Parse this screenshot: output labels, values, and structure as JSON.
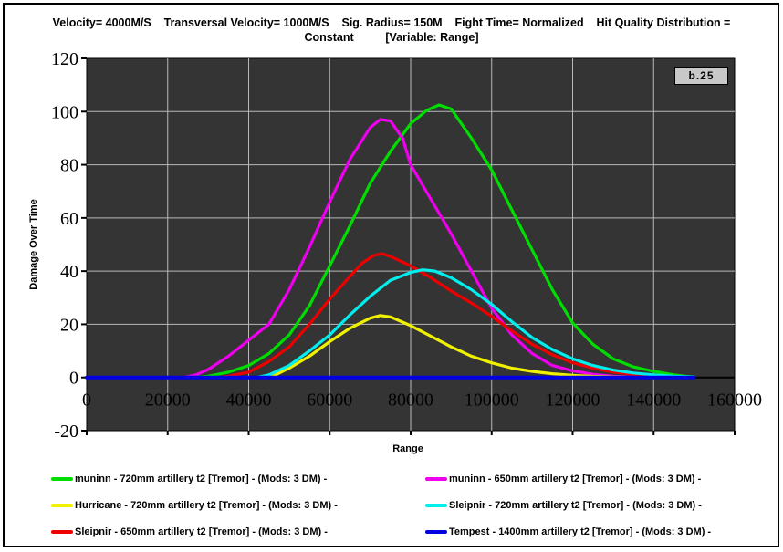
{
  "window": {
    "background": "#ffffff",
    "border_color": "#000000"
  },
  "title": {
    "line1": "Velocity= 4000M/S    Transversal Velocity= 1000M/S    Sig. Radius= 150M    Fight Time= Normalized    Hit Quality Distribution =",
    "line2": "Constant          [Variable: Range]"
  },
  "chart_data": {
    "type": "line",
    "xlabel": "Range",
    "ylabel": "Damage Over Time",
    "annotation": "b.25",
    "xlim": [
      0,
      160000
    ],
    "ylim": [
      -20,
      120
    ],
    "x_ticks": [
      0,
      20000,
      40000,
      60000,
      80000,
      100000,
      120000,
      140000,
      160000
    ],
    "y_ticks": [
      120,
      100,
      80,
      60,
      40,
      20,
      0,
      -20
    ],
    "grid": true,
    "legend_position": "bottom-two-columns",
    "colors": {
      "plot_bg": "#343434",
      "gridline": "#b8b8b8",
      "axis": "#000000",
      "annotation_bg": "#c8c8c8",
      "text": "#000000"
    },
    "legend_order": [
      0,
      1,
      2,
      4,
      3,
      5
    ],
    "series": [
      {
        "name": "muninn - 720mm artillery t2 [Tremor] - (Mods: 3 DM) -",
        "color": "#00dd00",
        "width": 3.2,
        "points": [
          [
            0,
            0
          ],
          [
            20000,
            0
          ],
          [
            26000,
            0
          ],
          [
            30000,
            0.5
          ],
          [
            35000,
            2
          ],
          [
            40000,
            4.5
          ],
          [
            45000,
            9
          ],
          [
            50000,
            16
          ],
          [
            55000,
            27
          ],
          [
            60000,
            42
          ],
          [
            65000,
            57
          ],
          [
            70000,
            73
          ],
          [
            75000,
            85
          ],
          [
            80000,
            95.5
          ],
          [
            84000,
            100.5
          ],
          [
            87000,
            102.5
          ],
          [
            90000,
            101
          ],
          [
            95000,
            90
          ],
          [
            100000,
            78
          ],
          [
            105000,
            63
          ],
          [
            110000,
            48
          ],
          [
            115000,
            33
          ],
          [
            120000,
            20.5
          ],
          [
            125000,
            12.5
          ],
          [
            130000,
            7
          ],
          [
            135000,
            4
          ],
          [
            140000,
            2.3
          ],
          [
            145000,
            1
          ],
          [
            148000,
            0.4
          ],
          [
            150000,
            0.2
          ]
        ]
      },
      {
        "name": "muninn - 650mm artillery t2 [Tremor] - (Mods: 3 DM) -",
        "color": "#ee00ee",
        "width": 3.2,
        "points": [
          [
            0,
            0
          ],
          [
            20000,
            0
          ],
          [
            24000,
            0
          ],
          [
            27000,
            1
          ],
          [
            30000,
            3
          ],
          [
            35000,
            8
          ],
          [
            40000,
            14
          ],
          [
            45000,
            20
          ],
          [
            50000,
            33
          ],
          [
            55000,
            49
          ],
          [
            60000,
            66
          ],
          [
            65000,
            82
          ],
          [
            70000,
            94
          ],
          [
            72500,
            97
          ],
          [
            75000,
            96.5
          ],
          [
            78000,
            90
          ],
          [
            80000,
            80
          ],
          [
            85000,
            67
          ],
          [
            90000,
            54
          ],
          [
            95000,
            40
          ],
          [
            100000,
            26
          ],
          [
            105000,
            16
          ],
          [
            110000,
            9
          ],
          [
            115000,
            4.5
          ],
          [
            120000,
            2.5
          ],
          [
            125000,
            1.2
          ],
          [
            130000,
            0.5
          ],
          [
            135000,
            0.1
          ],
          [
            138000,
            0
          ]
        ]
      },
      {
        "name": "Hurricane - 720mm artillery t2 [Tremor] - (Mods: 3 DM) -",
        "color": "#f0f000",
        "width": 3.2,
        "points": [
          [
            0,
            0
          ],
          [
            20000,
            0
          ],
          [
            43000,
            0
          ],
          [
            46000,
            0.5
          ],
          [
            50000,
            3.5
          ],
          [
            55000,
            8
          ],
          [
            60000,
            13.5
          ],
          [
            65000,
            18.5
          ],
          [
            70000,
            22.3
          ],
          [
            72500,
            23.3
          ],
          [
            75000,
            22.8
          ],
          [
            80000,
            19.5
          ],
          [
            85000,
            15.5
          ],
          [
            90000,
            11.5
          ],
          [
            95000,
            8
          ],
          [
            100000,
            5.5
          ],
          [
            105000,
            3.5
          ],
          [
            110000,
            2.3
          ],
          [
            115000,
            1.4
          ],
          [
            120000,
            0.8
          ],
          [
            125000,
            0.4
          ],
          [
            130000,
            0.2
          ],
          [
            133000,
            0.1
          ]
        ]
      },
      {
        "name": "Sleipnir - 650mm artillery t2 [Tremor] - (Mods: 3 DM) -",
        "color": "#ee0000",
        "width": 3.2,
        "points": [
          [
            0,
            0
          ],
          [
            20000,
            0
          ],
          [
            32000,
            0
          ],
          [
            35000,
            0.5
          ],
          [
            40000,
            2
          ],
          [
            45000,
            6
          ],
          [
            50000,
            11.5
          ],
          [
            55000,
            20
          ],
          [
            60000,
            29.5
          ],
          [
            65000,
            38
          ],
          [
            68000,
            43
          ],
          [
            71000,
            46
          ],
          [
            73000,
            46.5
          ],
          [
            75000,
            45.5
          ],
          [
            80000,
            42
          ],
          [
            85000,
            37.5
          ],
          [
            90000,
            32.5
          ],
          [
            95000,
            28
          ],
          [
            100000,
            23
          ],
          [
            105000,
            17.5
          ],
          [
            110000,
            12.5
          ],
          [
            115000,
            8.5
          ],
          [
            120000,
            5.5
          ],
          [
            125000,
            3.5
          ],
          [
            130000,
            2
          ],
          [
            135000,
            1.2
          ],
          [
            140000,
            0.6
          ],
          [
            145000,
            0.3
          ],
          [
            147000,
            0.1
          ]
        ]
      },
      {
        "name": "Sleipnir - 720mm artillery t2 [Tremor] - (Mods: 3 DM) -",
        "color": "#00eeee",
        "width": 3.2,
        "points": [
          [
            0,
            0
          ],
          [
            20000,
            0
          ],
          [
            42000,
            0
          ],
          [
            45000,
            1
          ],
          [
            50000,
            4.5
          ],
          [
            55000,
            10
          ],
          [
            60000,
            16
          ],
          [
            65000,
            23.5
          ],
          [
            70000,
            30.5
          ],
          [
            75000,
            36.5
          ],
          [
            80000,
            39.5
          ],
          [
            83000,
            40.5
          ],
          [
            86000,
            40
          ],
          [
            90000,
            37.5
          ],
          [
            95000,
            33
          ],
          [
            100000,
            27.5
          ],
          [
            105000,
            21
          ],
          [
            110000,
            15
          ],
          [
            115000,
            10.5
          ],
          [
            120000,
            7
          ],
          [
            125000,
            4.5
          ],
          [
            130000,
            2.8
          ],
          [
            135000,
            1.7
          ],
          [
            140000,
            1
          ],
          [
            145000,
            0.5
          ],
          [
            150000,
            0.2
          ]
        ]
      },
      {
        "name": "Tempest - 1400mm artillery t2 [Tremor] - (Mods: 3 DM) -",
        "color": "#0000e0",
        "width": 4,
        "points": [
          [
            0,
            0
          ],
          [
            150000,
            0
          ]
        ]
      }
    ]
  }
}
